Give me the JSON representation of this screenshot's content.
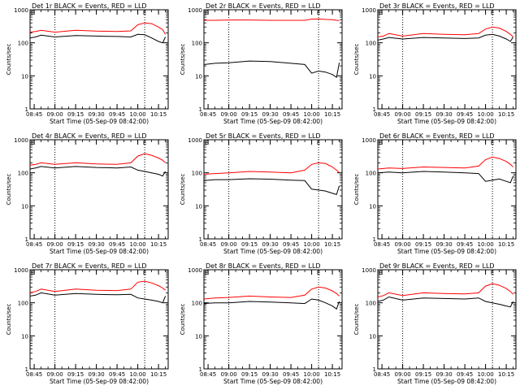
{
  "figure": {
    "x_axis_title": "Start Time (05-Sep-09 08:42:00)",
    "y_axis_title": "Counts/sec",
    "y_scale": "log",
    "y_range": [
      1,
      1000
    ],
    "y_tick_labels": [
      "1",
      "10",
      "100",
      "1000"
    ],
    "x_range": [
      "08:42",
      "10:22"
    ],
    "x_tick_labels": [
      "08:45",
      "09:00",
      "09:15",
      "09:30",
      "09:45",
      "10:00",
      "10:15"
    ],
    "vertical_markers": [
      "09:00",
      "10:05"
    ],
    "top_marker_labels": [
      "E",
      "E"
    ],
    "colors": {
      "events": "#000000",
      "lld": "#ff0000",
      "markers": "#000000"
    }
  },
  "chart_data": [
    {
      "type": "line",
      "title": "Det 1r BLACK = Events, RED = LLD",
      "xlabel": "Start Time (05-Sep-09 08:42:00)",
      "ylabel": "Counts/sec",
      "yscale": "log",
      "ylim": [
        1,
        1000
      ],
      "series": [
        {
          "name": "Events",
          "color": "#000000",
          "x": [
            "08:42",
            "08:46",
            "08:50",
            "09:00",
            "09:15",
            "09:30",
            "09:45",
            "09:55",
            "10:00",
            "10:05",
            "10:10",
            "10:15",
            "10:18",
            "10:20"
          ],
          "y": [
            140,
            150,
            170,
            150,
            165,
            160,
            155,
            150,
            180,
            175,
            140,
            110,
            100,
            150
          ]
        },
        {
          "name": "LLD",
          "color": "#ff0000",
          "x": [
            "08:42",
            "08:46",
            "08:50",
            "09:00",
            "09:15",
            "09:30",
            "09:45",
            "09:55",
            "10:00",
            "10:05",
            "10:10",
            "10:15",
            "10:18",
            "10:20"
          ],
          "y": [
            210,
            220,
            240,
            210,
            240,
            225,
            220,
            230,
            350,
            400,
            380,
            300,
            250,
            180
          ]
        }
      ]
    },
    {
      "type": "line",
      "title": "Det 2r BLACK = Events, RED = LLD",
      "xlabel": "Start Time (05-Sep-09 08:42:00)",
      "ylabel": "Counts/sec",
      "yscale": "log",
      "ylim": [
        1,
        1000
      ],
      "series": [
        {
          "name": "Events",
          "color": "#000000",
          "x": [
            "08:42",
            "08:50",
            "09:00",
            "09:15",
            "09:30",
            "09:45",
            "09:55",
            "10:00",
            "10:05",
            "10:10",
            "10:15",
            "10:18",
            "10:20"
          ],
          "y": [
            22,
            24,
            25,
            28,
            27,
            24,
            22,
            12,
            14,
            13,
            11,
            9,
            25
          ]
        },
        {
          "name": "LLD",
          "color": "#ff0000",
          "x": [
            "08:42",
            "08:50",
            "09:00",
            "09:15",
            "09:30",
            "09:45",
            "09:55",
            "10:00",
            "10:05",
            "10:10",
            "10:15",
            "10:18",
            "10:20"
          ],
          "y": [
            480,
            480,
            490,
            490,
            480,
            480,
            480,
            520,
            530,
            510,
            500,
            480,
            470
          ]
        }
      ]
    },
    {
      "type": "line",
      "title": "Det 3r BLACK = Events, RED = LLD",
      "xlabel": "Start Time (05-Sep-09 08:42:00)",
      "ylabel": "Counts/sec",
      "yscale": "log",
      "ylim": [
        1,
        1000
      ],
      "series": [
        {
          "name": "Events",
          "color": "#000000",
          "x": [
            "08:42",
            "08:46",
            "08:50",
            "09:00",
            "09:15",
            "09:30",
            "09:45",
            "09:55",
            "10:00",
            "10:05",
            "10:10",
            "10:15",
            "10:18",
            "10:20"
          ],
          "y": [
            120,
            130,
            145,
            130,
            145,
            140,
            135,
            140,
            170,
            180,
            160,
            130,
            110,
            150
          ]
        },
        {
          "name": "LLD",
          "color": "#ff0000",
          "x": [
            "08:42",
            "08:46",
            "08:50",
            "09:00",
            "09:15",
            "09:30",
            "09:45",
            "09:55",
            "10:00",
            "10:05",
            "10:10",
            "10:15",
            "10:18",
            "10:20"
          ],
          "y": [
            150,
            160,
            190,
            160,
            190,
            180,
            175,
            190,
            260,
            300,
            280,
            220,
            180,
            150
          ]
        }
      ]
    },
    {
      "type": "line",
      "title": "Det 4r BLACK = Events, RED = LLD",
      "xlabel": "Start Time (05-Sep-09 08:42:00)",
      "ylabel": "Counts/sec",
      "yscale": "log",
      "ylim": [
        1,
        1000
      ],
      "series": [
        {
          "name": "Events",
          "color": "#000000",
          "x": [
            "08:42",
            "08:46",
            "08:50",
            "09:00",
            "09:15",
            "09:30",
            "09:45",
            "09:55",
            "10:00",
            "10:05",
            "10:10",
            "10:15",
            "10:18",
            "10:20"
          ],
          "y": [
            130,
            140,
            155,
            140,
            155,
            145,
            140,
            150,
            120,
            110,
            100,
            90,
            80,
            110
          ]
        },
        {
          "name": "LLD",
          "color": "#ff0000",
          "x": [
            "08:42",
            "08:46",
            "08:50",
            "09:00",
            "09:15",
            "09:30",
            "09:45",
            "09:55",
            "10:00",
            "10:05",
            "10:10",
            "10:15",
            "10:18",
            "10:20"
          ],
          "y": [
            170,
            180,
            200,
            180,
            200,
            185,
            180,
            200,
            320,
            380,
            340,
            280,
            240,
            200
          ]
        }
      ]
    },
    {
      "type": "line",
      "title": "Det 5r BLACK = Events, RED = LLD",
      "xlabel": "Start Time (05-Sep-09 08:42:00)",
      "ylabel": "Counts/sec",
      "yscale": "log",
      "ylim": [
        1,
        1000
      ],
      "series": [
        {
          "name": "Events",
          "color": "#000000",
          "x": [
            "08:42",
            "08:50",
            "09:00",
            "09:15",
            "09:30",
            "09:45",
            "09:55",
            "10:00",
            "10:05",
            "10:10",
            "10:15",
            "10:18",
            "10:20"
          ],
          "y": [
            58,
            62,
            62,
            66,
            64,
            60,
            58,
            32,
            30,
            28,
            24,
            22,
            40
          ]
        },
        {
          "name": "LLD",
          "color": "#ff0000",
          "x": [
            "08:42",
            "08:50",
            "09:00",
            "09:15",
            "09:30",
            "09:45",
            "09:55",
            "10:00",
            "10:05",
            "10:10",
            "10:15",
            "10:18",
            "10:20"
          ],
          "y": [
            90,
            95,
            100,
            110,
            105,
            100,
            120,
            180,
            200,
            190,
            150,
            120,
            100
          ]
        }
      ]
    },
    {
      "type": "line",
      "title": "Det 6r BLACK = Events, RED = LLD",
      "xlabel": "Start Time (05-Sep-09 08:42:00)",
      "ylabel": "Counts/sec",
      "yscale": "log",
      "ylim": [
        1,
        1000
      ],
      "series": [
        {
          "name": "Events",
          "color": "#000000",
          "x": [
            "08:42",
            "08:50",
            "09:00",
            "09:15",
            "09:30",
            "09:45",
            "09:55",
            "10:00",
            "10:05",
            "10:10",
            "10:15",
            "10:18",
            "10:20"
          ],
          "y": [
            100,
            105,
            100,
            110,
            105,
            100,
            95,
            55,
            60,
            65,
            55,
            50,
            80
          ]
        },
        {
          "name": "LLD",
          "color": "#ff0000",
          "x": [
            "08:42",
            "08:50",
            "09:00",
            "09:15",
            "09:30",
            "09:45",
            "09:55",
            "10:00",
            "10:05",
            "10:10",
            "10:15",
            "10:18",
            "10:20"
          ],
          "y": [
            130,
            140,
            135,
            150,
            145,
            140,
            160,
            250,
            300,
            270,
            220,
            180,
            150
          ]
        }
      ]
    },
    {
      "type": "line",
      "title": "Det 7r BLACK = Events, RED = LLD",
      "xlabel": "Start Time (05-Sep-09 08:42:00)",
      "ylabel": "Counts/sec",
      "yscale": "log",
      "ylim": [
        1,
        1000
      ],
      "series": [
        {
          "name": "Events",
          "color": "#000000",
          "x": [
            "08:42",
            "08:46",
            "08:50",
            "09:00",
            "09:15",
            "09:30",
            "09:45",
            "09:55",
            "10:00",
            "10:05",
            "10:10",
            "10:15",
            "10:18",
            "10:20"
          ],
          "y": [
            160,
            170,
            200,
            170,
            190,
            180,
            175,
            180,
            140,
            130,
            120,
            110,
            100,
            160
          ]
        },
        {
          "name": "LLD",
          "color": "#ff0000",
          "x": [
            "08:42",
            "08:46",
            "08:50",
            "09:00",
            "09:15",
            "09:30",
            "09:45",
            "09:55",
            "10:00",
            "10:05",
            "10:10",
            "10:15",
            "10:18",
            "10:20"
          ],
          "y": [
            200,
            220,
            260,
            220,
            260,
            240,
            235,
            260,
            420,
            450,
            400,
            330,
            280,
            240
          ]
        }
      ]
    },
    {
      "type": "line",
      "title": "Det 8r BLACK = Events, RED = LLD",
      "xlabel": "Start Time (05-Sep-09 08:42:00)",
      "ylabel": "Counts/sec",
      "yscale": "log",
      "ylim": [
        1,
        1000
      ],
      "series": [
        {
          "name": "Events",
          "color": "#000000",
          "x": [
            "08:42",
            "08:50",
            "09:00",
            "09:15",
            "09:30",
            "09:45",
            "09:55",
            "10:00",
            "10:05",
            "10:10",
            "10:15",
            "10:18",
            "10:20"
          ],
          "y": [
            95,
            100,
            100,
            110,
            105,
            100,
            95,
            130,
            120,
            100,
            80,
            65,
            110
          ]
        },
        {
          "name": "LLD",
          "color": "#ff0000",
          "x": [
            "08:42",
            "08:50",
            "09:00",
            "09:15",
            "09:30",
            "09:45",
            "09:55",
            "10:00",
            "10:05",
            "10:10",
            "10:15",
            "10:18",
            "10:20"
          ],
          "y": [
            130,
            140,
            145,
            160,
            150,
            145,
            170,
            260,
            300,
            280,
            230,
            190,
            160
          ]
        }
      ]
    },
    {
      "type": "line",
      "title": "Det 9r BLACK = Events, RED = LLD",
      "xlabel": "Start Time (05-Sep-09 08:42:00)",
      "ylabel": "Counts/sec",
      "yscale": "log",
      "ylim": [
        1,
        1000
      ],
      "series": [
        {
          "name": "Events",
          "color": "#000000",
          "x": [
            "08:42",
            "08:46",
            "08:50",
            "09:00",
            "09:15",
            "09:30",
            "09:45",
            "09:55",
            "10:00",
            "10:05",
            "10:10",
            "10:15",
            "10:18",
            "10:20"
          ],
          "y": [
            110,
            120,
            150,
            120,
            140,
            135,
            130,
            140,
            110,
            100,
            90,
            80,
            75,
            110
          ]
        },
        {
          "name": "LLD",
          "color": "#ff0000",
          "x": [
            "08:42",
            "08:46",
            "08:50",
            "09:00",
            "09:15",
            "09:30",
            "09:45",
            "09:55",
            "10:00",
            "10:05",
            "10:10",
            "10:15",
            "10:18",
            "10:20"
          ],
          "y": [
            150,
            165,
            200,
            165,
            200,
            190,
            185,
            200,
            320,
            380,
            340,
            270,
            220,
            180
          ]
        }
      ]
    }
  ]
}
